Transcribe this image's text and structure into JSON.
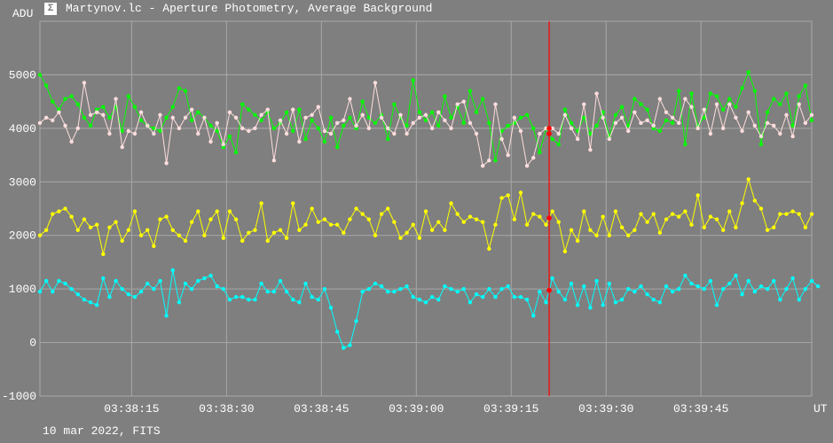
{
  "window": {
    "title": "Martynov.lc - Aperture Photometry, Average Background",
    "icon": "sigma-icon"
  },
  "footer": {
    "date_text": "10 mar 2022, FITS"
  },
  "colors": {
    "background": "#7f7f7f",
    "grid": "#a8a8a8",
    "cursor": "#ff0000",
    "series": [
      "#00ff00",
      "#ffdddd",
      "#ffff00",
      "#00ffff"
    ]
  },
  "chart_data": {
    "type": "line",
    "title": "",
    "xlabel": "UT",
    "ylabel": "ADU",
    "xlim": [
      0,
      122
    ],
    "ylim": [
      -1000,
      6000
    ],
    "x_ticks": [
      {
        "x": 14.5,
        "label": "03:38:15"
      },
      {
        "x": 29.5,
        "label": "03:38:30"
      },
      {
        "x": 44.5,
        "label": "03:38:45"
      },
      {
        "x": 59.5,
        "label": "03:39:00"
      },
      {
        "x": 74.5,
        "label": "03:39:15"
      },
      {
        "x": 89.5,
        "label": "03:39:30"
      },
      {
        "x": 104.5,
        "label": "03:39:45"
      }
    ],
    "y_ticks": [
      -1000,
      0,
      1000,
      2000,
      3000,
      4000,
      5000
    ],
    "grid": true,
    "cursor_x": 80.5,
    "series": [
      {
        "name": "",
        "color": "#00ff00",
        "values": [
          5000,
          4800,
          4500,
          4350,
          4550,
          4600,
          4450,
          4200,
          4050,
          4350,
          4400,
          4200,
          4400,
          3950,
          4600,
          4400,
          4150,
          4050,
          4000,
          3950,
          4200,
          4400,
          4750,
          4700,
          4150,
          4300,
          4200,
          4050,
          3950,
          3650,
          3850,
          3550,
          4450,
          4350,
          4250,
          4150,
          4300,
          4000,
          4100,
          4300,
          3950,
          4350,
          3800,
          4150,
          4000,
          3750,
          4200,
          3650,
          4050,
          4200,
          4000,
          4500,
          4200,
          4100,
          4250,
          3800,
          4450,
          4200,
          4050,
          4900,
          4300,
          4150,
          4300,
          4050,
          4600,
          4200,
          4400,
          4100,
          4700,
          4300,
          4550,
          4100,
          3400,
          3950,
          4050,
          4100,
          4200,
          4250,
          4000,
          3550,
          4000,
          3800,
          3700,
          4350,
          4100,
          3950,
          4200,
          3900,
          4050,
          4300,
          3850,
          4250,
          4400,
          4050,
          4550,
          4450,
          4350,
          4000,
          3950,
          4150,
          4100,
          4700,
          3700,
          4650,
          4050,
          4200,
          4650,
          4600,
          4350,
          4550,
          4400,
          4750,
          5050,
          4700,
          3700,
          4300,
          4550,
          4450,
          4650,
          4050,
          4600,
          4800,
          4150
        ],
        "values_override_note": ""
      },
      {
        "name": "",
        "color": "#ffdddd",
        "values": [
          4100,
          4200,
          4150,
          4300,
          4050,
          3750,
          4000,
          4850,
          4250,
          4300,
          4250,
          3900,
          4550,
          3650,
          3950,
          3900,
          4300,
          4050,
          3900,
          4250,
          3350,
          4200,
          4000,
          4200,
          4350,
          3900,
          4200,
          3750,
          4100,
          3700,
          4300,
          4200,
          4000,
          3950,
          4000,
          4250,
          4350,
          3400,
          4150,
          3900,
          4350,
          3750,
          4200,
          4250,
          4400,
          3950,
          3900,
          4100,
          4150,
          4550,
          4050,
          4250,
          4000,
          4850,
          4200,
          4000,
          3900,
          4250,
          3900,
          4100,
          4200,
          4250,
          4000,
          4300,
          4150,
          4000,
          4450,
          4500,
          4100,
          3900,
          3300,
          3400,
          4450,
          3800,
          3500,
          4200,
          3950,
          3300,
          3450,
          3900,
          4000,
          4000,
          3900,
          4250,
          4000,
          3800,
          4450,
          3600,
          4650,
          4200,
          3800,
          4100,
          4200,
          3950,
          4300,
          4100,
          4150,
          4050,
          4550,
          4300,
          4200,
          4100,
          4550,
          4400,
          4000,
          4350,
          3900,
          4450,
          4000,
          4450,
          4200,
          3950,
          4300,
          4050,
          3850,
          4100,
          4050,
          3900,
          4250,
          3850,
          4450,
          4100,
          4250
        ]
      },
      {
        "name": "",
        "color": "#ffff00",
        "values": [
          2000,
          2100,
          2400,
          2450,
          2500,
          2350,
          2100,
          2300,
          2150,
          2200,
          1650,
          2150,
          2250,
          1900,
          2100,
          2450,
          2000,
          2100,
          1800,
          2300,
          2350,
          2100,
          2000,
          1900,
          2250,
          2450,
          2000,
          2300,
          2450,
          1950,
          2450,
          2300,
          1900,
          2050,
          2100,
          2600,
          1900,
          2050,
          2100,
          1950,
          2600,
          2100,
          2200,
          2500,
          2250,
          2300,
          2200,
          2200,
          2050,
          2300,
          2500,
          2400,
          2300,
          2000,
          2400,
          2500,
          2250,
          1950,
          2050,
          2200,
          1950,
          2450,
          2100,
          2250,
          2100,
          2600,
          2400,
          2250,
          2350,
          2300,
          2250,
          1750,
          2200,
          2700,
          2750,
          2300,
          2800,
          2200,
          2400,
          2350,
          2200,
          2450,
          2250,
          1700,
          2100,
          1900,
          2450,
          2100,
          2000,
          2350,
          2000,
          2450,
          2150,
          2000,
          2100,
          2400,
          2250,
          2400,
          2050,
          2300,
          2400,
          2350,
          2450,
          2200,
          2750,
          2150,
          2350,
          2300,
          2100,
          2450,
          2150,
          2600,
          3050,
          2650,
          2500,
          2100,
          2150,
          2400,
          2400,
          2450,
          2400,
          2150,
          2400
        ]
      },
      {
        "name": "",
        "color": "#00ffff",
        "values": [
          950,
          1150,
          950,
          1150,
          1100,
          1000,
          900,
          800,
          750,
          700,
          1200,
          850,
          1150,
          1000,
          900,
          850,
          950,
          1100,
          1000,
          1150,
          500,
          1350,
          750,
          1100,
          1000,
          1150,
          1200,
          1250,
          1050,
          1000,
          800,
          850,
          850,
          800,
          800,
          1100,
          950,
          950,
          1150,
          950,
          800,
          750,
          1100,
          850,
          800,
          1000,
          650,
          200,
          -100,
          -50,
          400,
          950,
          1000,
          1100,
          1050,
          950,
          950,
          1000,
          1050,
          850,
          800,
          750,
          850,
          800,
          1050,
          1000,
          950,
          1000,
          750,
          900,
          850,
          1000,
          850,
          1000,
          1050,
          850,
          850,
          800,
          500,
          950,
          750,
          1200,
          950,
          800,
          1100,
          700,
          1050,
          650,
          1150,
          700,
          1100,
          750,
          800,
          1000,
          950,
          1050,
          900,
          800,
          750,
          1050,
          950,
          1000,
          1250,
          1100,
          1050,
          1000,
          1150,
          700,
          1000,
          1100,
          1250,
          900,
          1150,
          950,
          1050,
          1000,
          1150,
          800,
          1000,
          1200,
          800,
          1000,
          1150,
          1050
        ]
      }
    ]
  }
}
